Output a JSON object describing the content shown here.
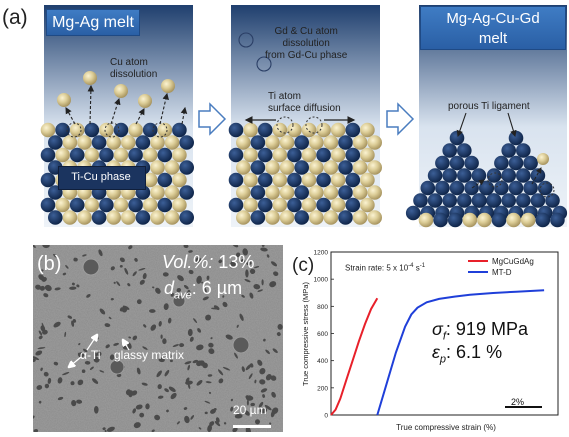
{
  "panel_a": {
    "label": "(a)",
    "stage1": {
      "title": "Mg-Ag melt",
      "cu_dissolution": "Cu atom\ndissolution",
      "phase_label": "Ti-Cu phase"
    },
    "stage2": {
      "gd_cu_dissolution": "Gd & Cu atom\ndissolution\nfrom Gd-Cu phase",
      "ti_diffusion": "Ti atom\nsurface diffusion"
    },
    "stage3": {
      "title": "Mg-Ag-Cu-Gd\nmelt",
      "ligament": "porous Ti ligament"
    }
  },
  "panel_b": {
    "label": "(b)",
    "vol_label": "Vol.%:",
    "vol_value": "13%",
    "dave_label": "d",
    "dave_sub": "ave",
    "dave_value": ": 6 µm",
    "alpha_ti": "α-Ti",
    "glassy": "glassy matrix",
    "scale_bar": "20 µm"
  },
  "panel_c": {
    "label": "(c)",
    "strain_rate_prefix": "Strain rate: 5 x 10",
    "strain_rate_exp": "-4",
    "strain_rate_unit": " s",
    "strain_rate_unit_exp": "-1",
    "sigma_value": ": 919 MPa",
    "eps_value": ": 6.1 %",
    "scale_bar": "2%",
    "colors": {
      "MgCuGdAg": "#e8202a",
      "MT-D": "#1f3fd9"
    }
  },
  "chart_data": {
    "type": "line",
    "title": "",
    "xlabel": "True compressive strain (%)",
    "ylabel": "True compressive stress (MPa)",
    "ylim": [
      0,
      1200
    ],
    "yticks": [
      "0",
      "200",
      "400",
      "600",
      "800",
      "1000",
      "1200"
    ],
    "legend_position": "top-right",
    "series": [
      {
        "name": "MgCuGdAg",
        "x": [
          0,
          0.3,
          0.6,
          1.0,
          1.4,
          1.8,
          2.2,
          2.6,
          3.0
        ],
        "y": [
          0,
          40,
          120,
          260,
          400,
          540,
          670,
          780,
          860
        ]
      },
      {
        "name": "MT-D",
        "x": [
          3.0,
          3.6,
          4.2,
          4.8,
          5.2,
          5.6,
          6.2,
          7.0,
          8.0,
          9.0,
          10.5,
          12.0,
          13.8
        ],
        "y": [
          0,
          230,
          460,
          650,
          740,
          790,
          830,
          855,
          872,
          885,
          898,
          908,
          919
        ]
      }
    ]
  }
}
